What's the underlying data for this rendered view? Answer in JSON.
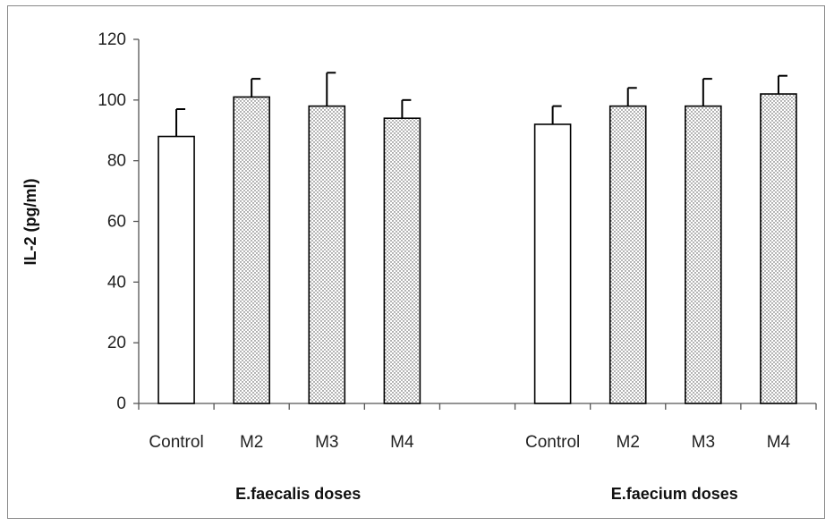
{
  "chart_data": {
    "type": "bar",
    "ylabel": "IL-2 (pg/ml)",
    "ylim": [
      0,
      120
    ],
    "yticks": [
      0,
      20,
      40,
      60,
      80,
      100,
      120
    ],
    "grid": false,
    "legend": "none",
    "groups": [
      {
        "label": "E.faecalis doses",
        "categories": [
          "Control",
          "M2",
          "M3",
          "M4"
        ],
        "values": [
          88,
          101,
          98,
          94
        ],
        "errors": [
          9,
          6,
          11,
          6
        ],
        "patterns": [
          "solid",
          "dotted",
          "dotted",
          "dotted"
        ]
      },
      {
        "label": "E.faecium doses",
        "categories": [
          "Control",
          "M2",
          "M3",
          "M4"
        ],
        "values": [
          92,
          98,
          98,
          102
        ],
        "errors": [
          6,
          6,
          9,
          6
        ],
        "patterns": [
          "solid",
          "dotted",
          "dotted",
          "dotted"
        ]
      }
    ],
    "colors": {
      "bar_fill": "#ffffff",
      "bar_stroke": "#000000",
      "dot": "#444444",
      "axis": "#555555"
    }
  }
}
